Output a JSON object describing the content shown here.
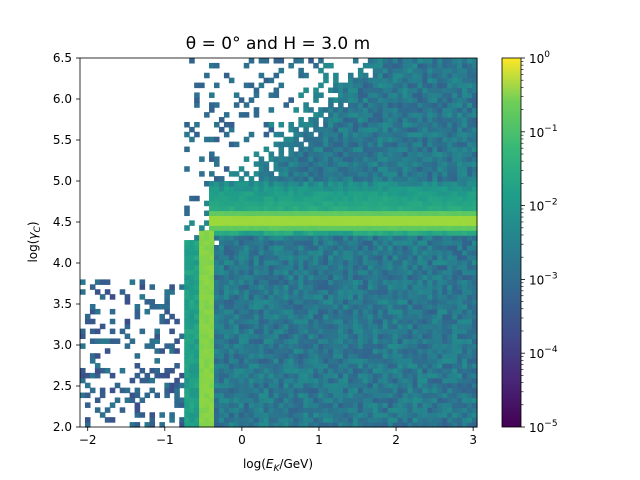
{
  "chart_data": {
    "type": "heatmap",
    "title": "θ = 0° and H = 3.0 m",
    "xlabel": "log(E_K/GeV)",
    "ylabel": "log(γ_C)",
    "xlim": [
      -2.1,
      3.05
    ],
    "ylim": [
      2.0,
      6.5
    ],
    "x_ticks": [
      -2,
      -1,
      0,
      1,
      2,
      3
    ],
    "x_tick_labels": [
      "−2",
      "−1",
      "0",
      "1",
      "2",
      "3"
    ],
    "y_ticks": [
      2.0,
      2.5,
      3.0,
      3.5,
      4.0,
      4.5,
      5.0,
      5.5,
      6.0,
      6.5
    ],
    "y_tick_labels": [
      "2.0",
      "2.5",
      "3.0",
      "3.5",
      "4.0",
      "4.5",
      "5.0",
      "5.5",
      "6.0",
      "6.5"
    ],
    "colorbar": {
      "scale": "log",
      "range": [
        1e-05,
        1
      ],
      "colormap": "viridis",
      "ticks": [
        1e-05,
        0.0001,
        0.001,
        0.01,
        0.1,
        1
      ],
      "tick_bases": [
        "10",
        "10",
        "10",
        "10",
        "10",
        "10"
      ],
      "tick_exponents": [
        "−5",
        "−4",
        "−3",
        "−2",
        "−1",
        "0"
      ]
    },
    "features": {
      "horizontal_ridge": {
        "y": 4.52,
        "x_from": -0.4,
        "x_to": 3.05,
        "value": 0.2
      },
      "vertical_ridge": {
        "x": -0.45,
        "y_from": 2.0,
        "y_to": 4.4,
        "value": 0.12
      },
      "background_level": 0.001,
      "empty_region": "upper-left (low energy, high gamma)"
    },
    "grid": false
  }
}
